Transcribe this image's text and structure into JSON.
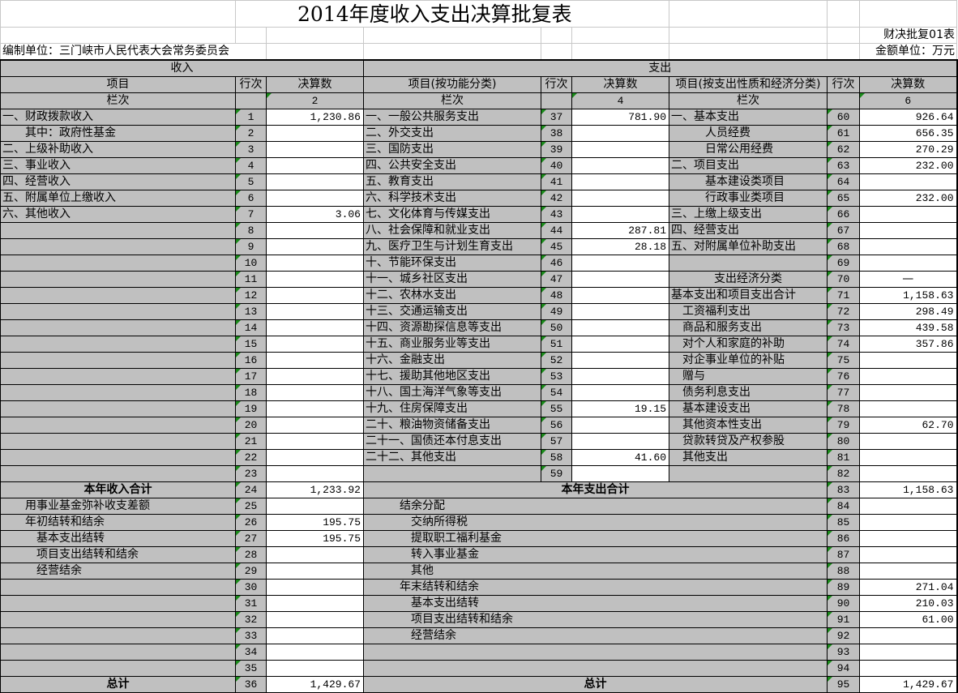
{
  "title": "2014年度收入支出决算批复表",
  "form_no": "财决批复01表",
  "unit": "编制单位：三门峡市人民代表大会常务委员会",
  "currency_unit": "金额单位：万元",
  "header": {
    "income": "收入",
    "expense": "支出",
    "item": "项目",
    "line_no": "行次",
    "amount": "决算数",
    "func_item": "项目(按功能分类)",
    "econ_item": "项目(按支出性质和经济分类)",
    "column_no": "栏次",
    "col2": "2",
    "col4": "4",
    "col6": "6"
  },
  "income_rows": [
    [
      "一、财政拨款收入",
      "1",
      "1,230.86"
    ],
    [
      "　　其中：政府性基金",
      "2",
      ""
    ],
    [
      "二、上级补助收入",
      "3",
      ""
    ],
    [
      "三、事业收入",
      "4",
      ""
    ],
    [
      "四、经营收入",
      "5",
      ""
    ],
    [
      "五、附属单位上缴收入",
      "6",
      ""
    ],
    [
      "六、其他收入",
      "7",
      "3.06"
    ],
    [
      "",
      "8",
      ""
    ],
    [
      "",
      "9",
      ""
    ],
    [
      "",
      "10",
      ""
    ],
    [
      "",
      "11",
      ""
    ],
    [
      "",
      "12",
      ""
    ],
    [
      "",
      "13",
      ""
    ],
    [
      "",
      "14",
      ""
    ],
    [
      "",
      "15",
      ""
    ],
    [
      "",
      "16",
      ""
    ],
    [
      "",
      "17",
      ""
    ],
    [
      "",
      "18",
      ""
    ],
    [
      "",
      "19",
      ""
    ],
    [
      "",
      "20",
      ""
    ],
    [
      "",
      "21",
      ""
    ],
    [
      "",
      "22",
      ""
    ],
    [
      "",
      "23",
      ""
    ],
    [
      "本年收入合计",
      "24",
      "1,233.92"
    ],
    [
      "　　用事业基金弥补收支差额",
      "25",
      ""
    ],
    [
      "　　年初结转和结余",
      "26",
      "195.75"
    ],
    [
      "　　　基本支出结转",
      "27",
      "195.75"
    ],
    [
      "　　　项目支出结转和结余",
      "28",
      ""
    ],
    [
      "　　　经营结余",
      "29",
      ""
    ],
    [
      "",
      "30",
      ""
    ],
    [
      "",
      "31",
      ""
    ],
    [
      "",
      "32",
      ""
    ],
    [
      "",
      "33",
      ""
    ],
    [
      "",
      "34",
      ""
    ],
    [
      "",
      "35",
      ""
    ],
    [
      "总计",
      "36",
      "1,429.67"
    ]
  ],
  "function_rows": [
    [
      "一、一般公共服务支出",
      "37",
      "781.90"
    ],
    [
      "二、外交支出",
      "38",
      ""
    ],
    [
      "三、国防支出",
      "39",
      ""
    ],
    [
      "四、公共安全支出",
      "40",
      ""
    ],
    [
      "五、教育支出",
      "41",
      ""
    ],
    [
      "六、科学技术支出",
      "42",
      ""
    ],
    [
      "七、文化体育与传媒支出",
      "43",
      ""
    ],
    [
      "八、社会保障和就业支出",
      "44",
      "287.81"
    ],
    [
      "九、医疗卫生与计划生育支出",
      "45",
      "28.18"
    ],
    [
      "十、节能环保支出",
      "46",
      ""
    ],
    [
      "十一、城乡社区支出",
      "47",
      ""
    ],
    [
      "十二、农林水支出",
      "48",
      ""
    ],
    [
      "十三、交通运输支出",
      "49",
      ""
    ],
    [
      "十四、资源勘探信息等支出",
      "50",
      ""
    ],
    [
      "十五、商业服务业等支出",
      "51",
      ""
    ],
    [
      "十六、金融支出",
      "52",
      ""
    ],
    [
      "十七、援助其他地区支出",
      "53",
      ""
    ],
    [
      "十八、国土海洋气象等支出",
      "54",
      ""
    ],
    [
      "十九、住房保障支出",
      "55",
      "19.15"
    ],
    [
      "二十、粮油物资储备支出",
      "56",
      ""
    ],
    [
      "二十一、国债还本付息支出",
      "57",
      ""
    ],
    [
      "二十二、其他支出",
      "58",
      "41.60"
    ],
    [
      "",
      "59",
      ""
    ]
  ],
  "economic_rows": [
    [
      "一、基本支出",
      "60",
      "926.64"
    ],
    [
      "　　　人员经费",
      "61",
      "656.35"
    ],
    [
      "　　　日常公用经费",
      "62",
      "270.29"
    ],
    [
      "二、项目支出",
      "63",
      "232.00"
    ],
    [
      "　　　基本建设类项目",
      "64",
      ""
    ],
    [
      "　　　行政事业类项目",
      "65",
      "232.00"
    ],
    [
      "三、上缴上级支出",
      "66",
      ""
    ],
    [
      "四、经营支出",
      "67",
      ""
    ],
    [
      "五、对附属单位补助支出",
      "68",
      ""
    ],
    [
      "",
      "69",
      ""
    ],
    [
      "支出经济分类",
      "70",
      "—"
    ],
    [
      "基本支出和项目支出合计",
      "71",
      "1,158.63"
    ],
    [
      "　工资福利支出",
      "72",
      "298.49"
    ],
    [
      "　商品和服务支出",
      "73",
      "439.58"
    ],
    [
      "　对个人和家庭的补助",
      "74",
      "357.86"
    ],
    [
      "　对企事业单位的补贴",
      "75",
      ""
    ],
    [
      "　赠与",
      "76",
      ""
    ],
    [
      "　债务利息支出",
      "77",
      ""
    ],
    [
      "　基本建设支出",
      "78",
      ""
    ],
    [
      "　其他资本性支出",
      "79",
      "62.70"
    ],
    [
      "　贷款转贷及产权参股",
      "80",
      ""
    ],
    [
      "　其他支出",
      "81",
      ""
    ],
    [
      "",
      "82",
      ""
    ]
  ],
  "expense_summary_rows": [
    [
      "本年支出合计",
      "83",
      "1,158.63"
    ],
    [
      "　　　结余分配",
      "84",
      ""
    ],
    [
      "　　　　交纳所得税",
      "85",
      ""
    ],
    [
      "　　　　提取职工福利基金",
      "86",
      ""
    ],
    [
      "　　　　转入事业基金",
      "87",
      ""
    ],
    [
      "　　　　其他",
      "88",
      ""
    ],
    [
      "　　　年末结转和结余",
      "89",
      "271.04"
    ],
    [
      "　　　　基本支出结转",
      "90",
      "210.03"
    ],
    [
      "　　　　项目支出结转和结余",
      "91",
      "61.00"
    ],
    [
      "　　　　经营结余",
      "92",
      ""
    ],
    [
      "",
      "93",
      ""
    ],
    [
      "",
      "94",
      ""
    ],
    [
      "总计",
      "95",
      "1,429.67"
    ]
  ]
}
